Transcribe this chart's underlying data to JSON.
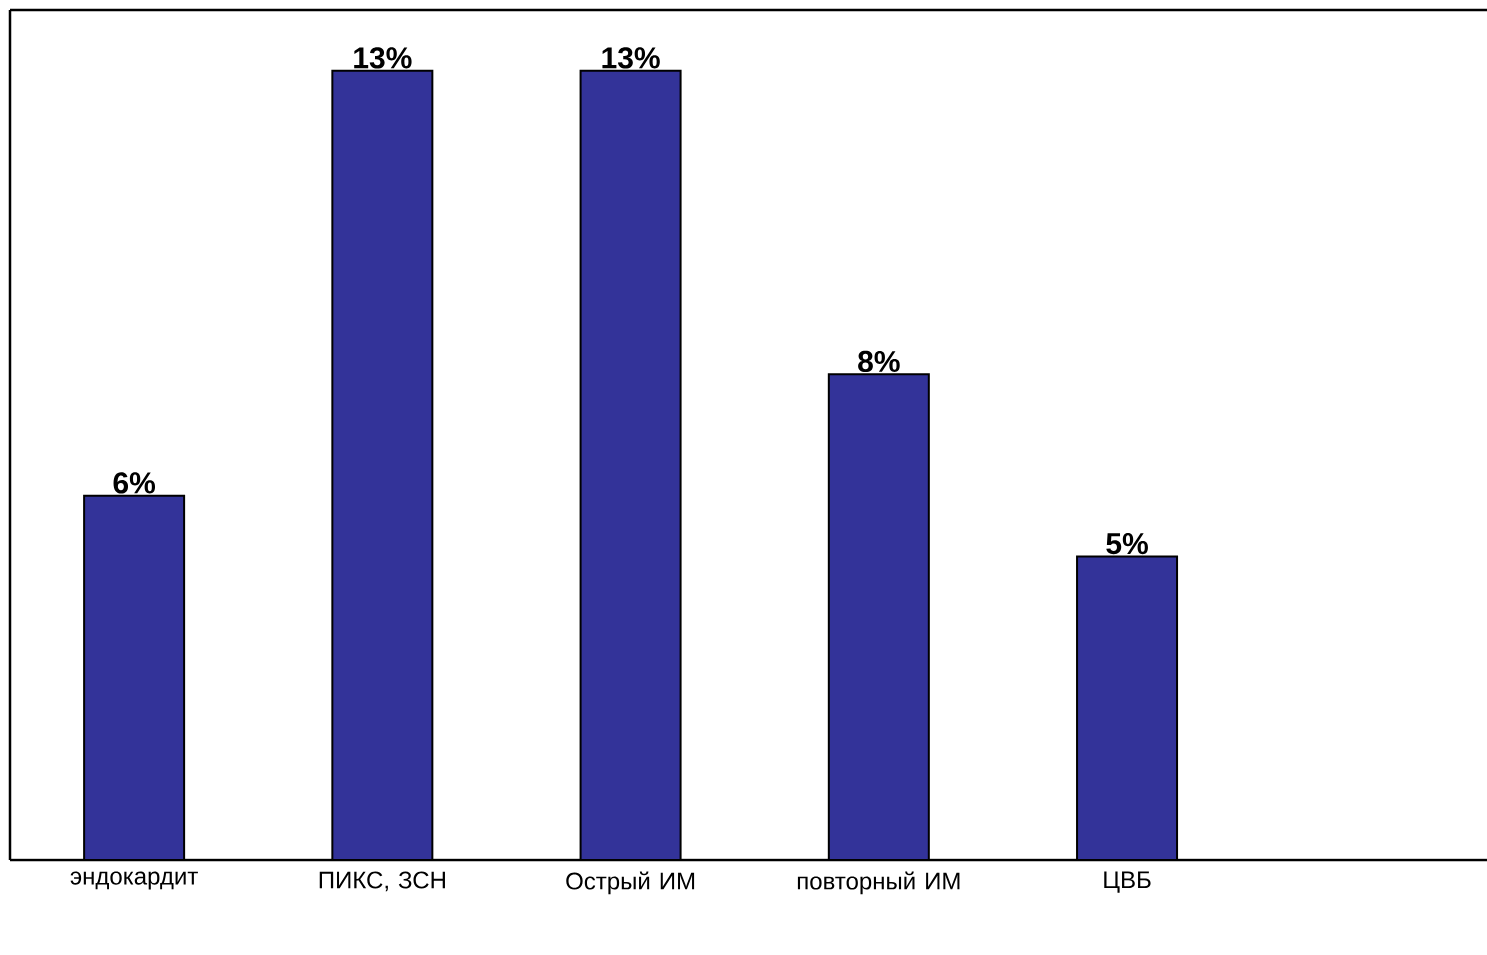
{
  "chart_data": {
    "type": "bar",
    "categories": [
      "эндокардит",
      "ПИКС, ЗСН",
      "Острый ИМ",
      "повторный ИМ",
      "ЦВБ"
    ],
    "values": [
      6,
      13,
      13,
      8,
      5
    ],
    "value_labels": [
      "6%",
      "13%",
      "13%",
      "8%",
      "5%"
    ],
    "color": "#333399"
  }
}
